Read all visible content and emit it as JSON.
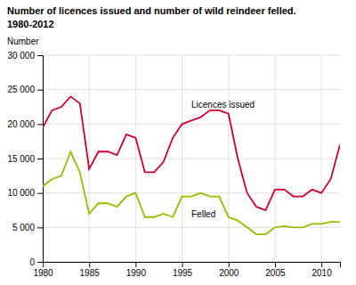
{
  "chart_data": {
    "type": "line",
    "title": "Number of licences issued and number of wild reindeer felled.",
    "subtitle": "1980-2012",
    "ylabel": "Number",
    "x": [
      1980,
      1981,
      1982,
      1983,
      1984,
      1985,
      1986,
      1987,
      1988,
      1989,
      1990,
      1991,
      1992,
      1993,
      1994,
      1995,
      1996,
      1997,
      1998,
      1999,
      2000,
      2001,
      2002,
      2003,
      2004,
      2005,
      2006,
      2007,
      2008,
      2009,
      2010,
      2011,
      2012
    ],
    "series": [
      {
        "color": "#cc0033",
        "values": [
          19500,
          22000,
          22500,
          24000,
          23000,
          13500,
          16000,
          16000,
          15500,
          18500,
          18000,
          13000,
          13000,
          14500,
          18000,
          20000,
          20500,
          21000,
          22000,
          22000,
          21500,
          15000,
          10000,
          8000,
          7500,
          10500,
          10500,
          9500,
          9500,
          10500,
          10000,
          12000,
          17000
        ]
      },
      {
        "color": "#99bb00",
        "values": [
          11000,
          12000,
          12500,
          16000,
          13000,
          7000,
          8500,
          8500,
          8000,
          9500,
          10000,
          6500,
          6500,
          7000,
          6500,
          9500,
          9500,
          10000,
          9500,
          9500,
          6500,
          6000,
          5000,
          4000,
          4000,
          5000,
          5200,
          5000,
          5000,
          5500,
          5500,
          5800,
          5800
        ]
      }
    ],
    "annotations": [
      {
        "text": "Licences issued",
        "x": 1996,
        "y": 22000
      },
      {
        "text": "Felled",
        "x": 1996,
        "y": 7800
      }
    ],
    "xlim": [
      1980,
      2012
    ],
    "xticks": [
      1980,
      1985,
      1990,
      1995,
      2000,
      2005,
      2010
    ],
    "ylim": [
      0,
      30000
    ],
    "yticks": [
      0,
      {
        "value": 5000,
        "label": "5 000"
      },
      {
        "value": 10000,
        "label": "10 000"
      },
      {
        "value": 15000,
        "label": "15 000"
      },
      {
        "value": 20000,
        "label": "20 000"
      },
      {
        "value": 25000,
        "label": "25 000"
      },
      {
        "value": 30000,
        "label": "30 000"
      }
    ],
    "grid": true
  }
}
